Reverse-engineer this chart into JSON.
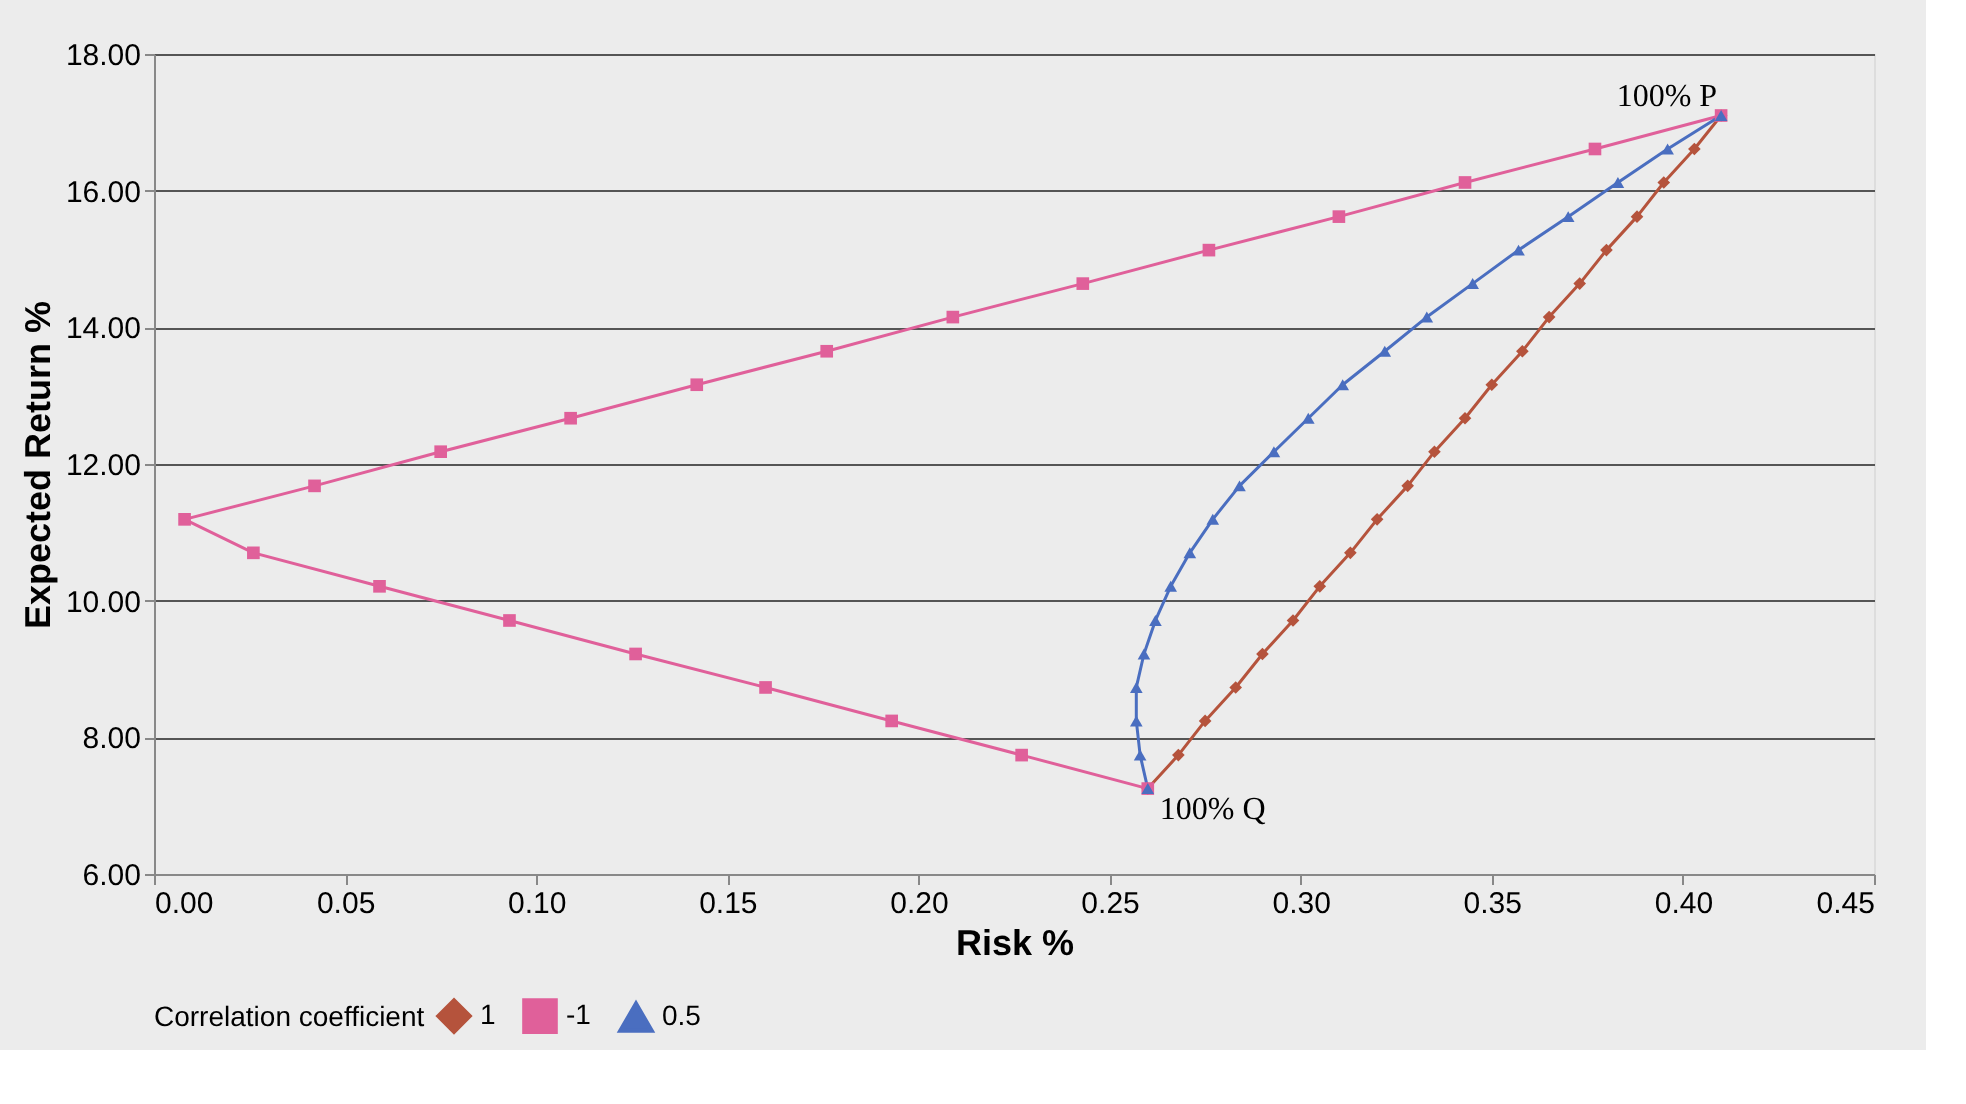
{
  "chart_data": {
    "type": "line",
    "xlabel": "Risk %",
    "ylabel": "Expected Return %",
    "legend_title": "Correlation coefficient",
    "legend": "bottom",
    "grid": "y",
    "xlim": [
      0,
      0.45
    ],
    "xticks": [
      {
        "value": 0,
        "label": "0.00"
      },
      {
        "value": 0.05,
        "label": "0.05"
      },
      {
        "value": 0.1,
        "label": "0.10"
      },
      {
        "value": 0.15,
        "label": "0.15"
      },
      {
        "value": 0.2,
        "label": "0.20"
      },
      {
        "value": 0.25,
        "label": "0.25"
      },
      {
        "value": 0.3,
        "label": "0.30"
      },
      {
        "value": 0.35,
        "label": "0.35"
      },
      {
        "value": 0.4,
        "label": "0.40"
      },
      {
        "value": 0.45,
        "label": "0.45"
      }
    ],
    "ylim": [
      6,
      18
    ],
    "yticks": [
      {
        "value": 6,
        "label": "6.00"
      },
      {
        "value": 8,
        "label": "8.00"
      },
      {
        "value": 10,
        "label": "10.00"
      },
      {
        "value": 12,
        "label": "12.00"
      },
      {
        "value": 14,
        "label": "14.00"
      },
      {
        "value": 16,
        "label": "16.00"
      },
      {
        "value": 18,
        "label": "18.00"
      }
    ],
    "annotations": [
      {
        "text": "100% P",
        "x": 0.41,
        "y": 17.1
      },
      {
        "text": "100% Q",
        "x": 0.26,
        "y": 7.25
      }
    ],
    "series": [
      {
        "name": "1",
        "color": "#b5533c",
        "marker": "diamond",
        "x": [
          0.26,
          0.268,
          0.275,
          0.283,
          0.29,
          0.298,
          0.305,
          0.313,
          0.32,
          0.328,
          0.335,
          0.343,
          0.35,
          0.358,
          0.365,
          0.373,
          0.38,
          0.388,
          0.395,
          0.403,
          0.41
        ],
        "values": [
          7.25,
          7.74,
          8.24,
          8.73,
          9.22,
          9.71,
          10.21,
          10.7,
          11.19,
          11.68,
          12.18,
          12.67,
          13.16,
          13.65,
          14.15,
          14.64,
          15.13,
          15.62,
          16.12,
          16.61,
          17.1
        ]
      },
      {
        "name": "-1",
        "color": "#e0609a",
        "marker": "square",
        "x": [
          0.26,
          0.227,
          0.193,
          0.16,
          0.126,
          0.093,
          0.059,
          0.026,
          0.008,
          0.042,
          0.075,
          0.109,
          0.142,
          0.176,
          0.209,
          0.243,
          0.276,
          0.31,
          0.343,
          0.377,
          0.41
        ],
        "values": [
          7.25,
          7.74,
          8.24,
          8.73,
          9.22,
          9.71,
          10.21,
          10.7,
          11.19,
          11.68,
          12.18,
          12.67,
          13.16,
          13.65,
          14.15,
          14.64,
          15.13,
          15.62,
          16.12,
          16.61,
          17.1
        ]
      },
      {
        "name": "0.5",
        "color": "#4a6ec0",
        "marker": "triangle",
        "x": [
          0.26,
          0.258,
          0.257,
          0.257,
          0.259,
          0.262,
          0.266,
          0.271,
          0.277,
          0.284,
          0.293,
          0.302,
          0.311,
          0.322,
          0.333,
          0.345,
          0.357,
          0.37,
          0.383,
          0.396,
          0.41
        ],
        "values": [
          7.25,
          7.74,
          8.24,
          8.73,
          9.22,
          9.71,
          10.21,
          10.7,
          11.19,
          11.68,
          12.18,
          12.67,
          13.16,
          13.65,
          14.15,
          14.64,
          15.13,
          15.62,
          16.12,
          16.61,
          17.1
        ]
      }
    ]
  }
}
